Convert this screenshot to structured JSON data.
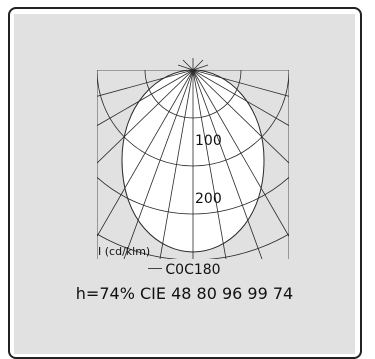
{
  "diagram": {
    "grid_labels": [
      "100",
      "200"
    ],
    "unit_label": "I (cd/klm)",
    "legend_label": "C0C180",
    "summary": "h=74% CIE 48 80 96 99 74"
  },
  "colors": {
    "panel": "#e1e1e1",
    "curve_fill": "#ffffff",
    "lines": "#2a2a2a",
    "border": "#222222"
  }
}
